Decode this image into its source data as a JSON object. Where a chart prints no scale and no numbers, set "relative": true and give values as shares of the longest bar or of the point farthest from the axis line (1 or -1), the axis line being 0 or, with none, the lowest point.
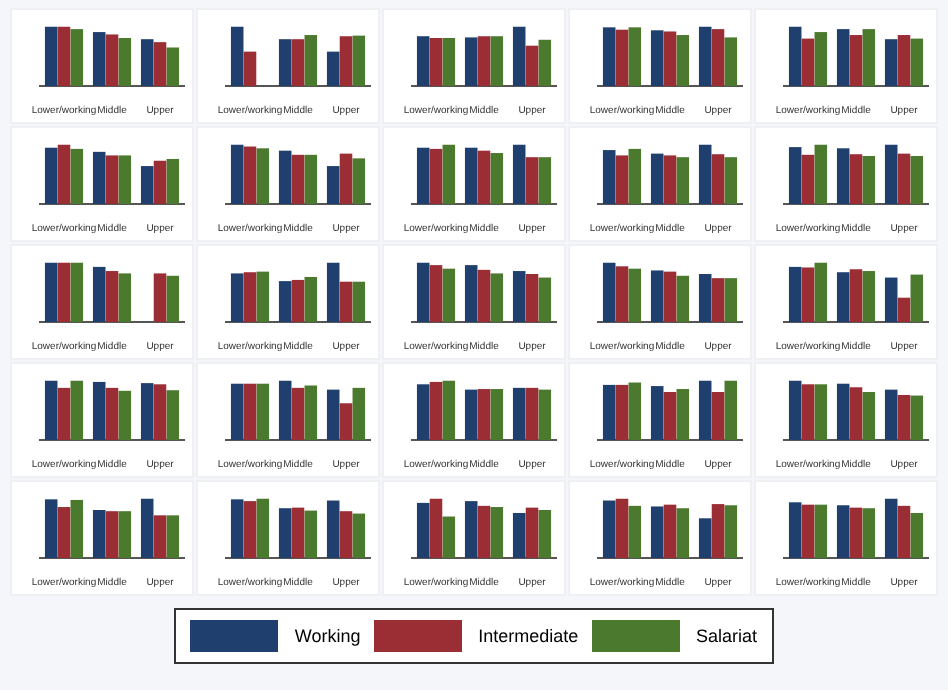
{
  "chart_data": [
    {
      "type": "bar",
      "relative": true,
      "legend": "bottom",
      "categories": [
        "Lower/working",
        "Middle",
        "Upper"
      ],
      "series": [
        {
          "name": "Working",
          "color": "#1f3f6e",
          "values": [
            1,
            0.91,
            0.79
          ]
        },
        {
          "name": "Intermediate",
          "color": "#9b2d35",
          "values": [
            1,
            0.87,
            0.74
          ]
        },
        {
          "name": "Salariat",
          "color": "#4b7a2e",
          "values": [
            0.96,
            0.81,
            0.65
          ]
        }
      ]
    },
    {
      "type": "bar",
      "relative": true,
      "categories": [
        "Lower/working",
        "Middle",
        "Upper"
      ],
      "series": [
        {
          "color": "#1f3f6e",
          "values": [
            1,
            0.79,
            0.58
          ]
        },
        {
          "color": "#9b2d35",
          "values": [
            0.58,
            0.79,
            0.84
          ]
        },
        {
          "color": "#4b7a2e",
          "values": [
            null,
            0.86,
            0.85
          ]
        }
      ]
    },
    {
      "type": "bar",
      "relative": true,
      "categories": [
        "Lower/working",
        "Middle",
        "Upper"
      ],
      "series": [
        {
          "color": "#1f3f6e",
          "values": [
            0.84,
            0.82,
            1
          ]
        },
        {
          "color": "#9b2d35",
          "values": [
            0.81,
            0.84,
            0.68
          ]
        },
        {
          "color": "#4b7a2e",
          "values": [
            0.81,
            0.84,
            0.78
          ]
        }
      ]
    },
    {
      "type": "bar",
      "relative": true,
      "categories": [
        "Lower/working",
        "Middle",
        "Upper"
      ],
      "series": [
        {
          "color": "#1f3f6e",
          "values": [
            0.99,
            0.94,
            1
          ]
        },
        {
          "color": "#9b2d35",
          "values": [
            0.95,
            0.92,
            0.96
          ]
        },
        {
          "color": "#4b7a2e",
          "values": [
            0.99,
            0.86,
            0.82
          ]
        }
      ]
    },
    {
      "type": "bar",
      "relative": true,
      "categories": [
        "Lower/working",
        "Middle",
        "Upper"
      ],
      "series": [
        {
          "color": "#1f3f6e",
          "values": [
            1,
            0.96,
            0.79
          ]
        },
        {
          "color": "#9b2d35",
          "values": [
            0.8,
            0.86,
            0.86
          ]
        },
        {
          "color": "#4b7a2e",
          "values": [
            0.91,
            0.96,
            0.8
          ]
        }
      ]
    },
    {
      "type": "bar",
      "relative": true,
      "categories": [
        "Lower/working",
        "Middle",
        "Upper"
      ],
      "series": [
        {
          "color": "#1f3f6e",
          "values": [
            0.95,
            0.88,
            0.64
          ]
        },
        {
          "color": "#9b2d35",
          "values": [
            1,
            0.82,
            0.73
          ]
        },
        {
          "color": "#4b7a2e",
          "values": [
            0.93,
            0.82,
            0.76
          ]
        }
      ]
    },
    {
      "type": "bar",
      "relative": true,
      "categories": [
        "Lower/working",
        "Middle",
        "Upper"
      ],
      "series": [
        {
          "color": "#1f3f6e",
          "values": [
            1,
            0.9,
            0.64
          ]
        },
        {
          "color": "#9b2d35",
          "values": [
            0.97,
            0.83,
            0.85
          ]
        },
        {
          "color": "#4b7a2e",
          "values": [
            0.94,
            0.83,
            0.77
          ]
        }
      ]
    },
    {
      "type": "bar",
      "relative": true,
      "categories": [
        "Lower/working",
        "Middle",
        "Upper"
      ],
      "series": [
        {
          "color": "#1f3f6e",
          "values": [
            0.95,
            0.95,
            1
          ]
        },
        {
          "color": "#9b2d35",
          "values": [
            0.93,
            0.9,
            0.79
          ]
        },
        {
          "color": "#4b7a2e",
          "values": [
            1,
            0.86,
            0.79
          ]
        }
      ]
    },
    {
      "type": "bar",
      "relative": true,
      "categories": [
        "Lower/working",
        "Middle",
        "Upper"
      ],
      "series": [
        {
          "color": "#1f3f6e",
          "values": [
            0.91,
            0.85,
            1
          ]
        },
        {
          "color": "#9b2d35",
          "values": [
            0.82,
            0.82,
            0.84
          ]
        },
        {
          "color": "#4b7a2e",
          "values": [
            0.93,
            0.79,
            0.79
          ]
        }
      ]
    },
    {
      "type": "bar",
      "relative": true,
      "categories": [
        "Lower/working",
        "Middle",
        "Upper"
      ],
      "series": [
        {
          "color": "#1f3f6e",
          "values": [
            0.96,
            0.94,
            1
          ]
        },
        {
          "color": "#9b2d35",
          "values": [
            0.83,
            0.84,
            0.85
          ]
        },
        {
          "color": "#4b7a2e",
          "values": [
            1,
            0.81,
            0.81
          ]
        }
      ]
    },
    {
      "type": "bar",
      "relative": true,
      "categories": [
        "Lower/working",
        "Middle",
        "Upper"
      ],
      "series": [
        {
          "color": "#1f3f6e",
          "values": [
            1,
            0.93,
            null
          ]
        },
        {
          "color": "#9b2d35",
          "values": [
            1,
            0.86,
            0.82
          ]
        },
        {
          "color": "#4b7a2e",
          "values": [
            1,
            0.82,
            0.78
          ]
        }
      ]
    },
    {
      "type": "bar",
      "relative": true,
      "categories": [
        "Lower/working",
        "Middle",
        "Upper"
      ],
      "series": [
        {
          "color": "#1f3f6e",
          "values": [
            0.82,
            0.69,
            1
          ]
        },
        {
          "color": "#9b2d35",
          "values": [
            0.84,
            0.71,
            0.68
          ]
        },
        {
          "color": "#4b7a2e",
          "values": [
            0.85,
            0.76,
            0.68
          ]
        }
      ]
    },
    {
      "type": "bar",
      "relative": true,
      "categories": [
        "Lower/working",
        "Middle",
        "Upper"
      ],
      "series": [
        {
          "color": "#1f3f6e",
          "values": [
            1,
            0.96,
            0.86
          ]
        },
        {
          "color": "#9b2d35",
          "values": [
            0.96,
            0.88,
            0.81
          ]
        },
        {
          "color": "#4b7a2e",
          "values": [
            0.9,
            0.82,
            0.75
          ]
        }
      ]
    },
    {
      "type": "bar",
      "relative": true,
      "categories": [
        "Lower/working",
        "Middle",
        "Upper"
      ],
      "series": [
        {
          "color": "#1f3f6e",
          "values": [
            1,
            0.87,
            0.81
          ]
        },
        {
          "color": "#9b2d35",
          "values": [
            0.94,
            0.85,
            0.74
          ]
        },
        {
          "color": "#4b7a2e",
          "values": [
            0.9,
            0.78,
            0.74
          ]
        }
      ]
    },
    {
      "type": "bar",
      "relative": true,
      "categories": [
        "Lower/working",
        "Middle",
        "Upper"
      ],
      "series": [
        {
          "color": "#1f3f6e",
          "values": [
            0.93,
            0.84,
            0.75
          ]
        },
        {
          "color": "#9b2d35",
          "values": [
            0.92,
            0.89,
            0.41
          ]
        },
        {
          "color": "#4b7a2e",
          "values": [
            1,
            0.86,
            0.8
          ]
        }
      ]
    },
    {
      "type": "bar",
      "relative": true,
      "categories": [
        "Lower/working",
        "Middle",
        "Upper"
      ],
      "series": [
        {
          "color": "#1f3f6e",
          "values": [
            1,
            0.98,
            0.96
          ]
        },
        {
          "color": "#9b2d35",
          "values": [
            0.88,
            0.88,
            0.94
          ]
        },
        {
          "color": "#4b7a2e",
          "values": [
            1,
            0.83,
            0.84
          ]
        }
      ]
    },
    {
      "type": "bar",
      "relative": true,
      "categories": [
        "Lower/working",
        "Middle",
        "Upper"
      ],
      "series": [
        {
          "color": "#1f3f6e",
          "values": [
            0.95,
            1,
            0.85
          ]
        },
        {
          "color": "#9b2d35",
          "values": [
            0.95,
            0.88,
            0.62
          ]
        },
        {
          "color": "#4b7a2e",
          "values": [
            0.95,
            0.92,
            0.88
          ]
        }
      ]
    },
    {
      "type": "bar",
      "relative": true,
      "categories": [
        "Lower/working",
        "Middle",
        "Upper"
      ],
      "series": [
        {
          "color": "#1f3f6e",
          "values": [
            0.94,
            0.85,
            0.88
          ]
        },
        {
          "color": "#9b2d35",
          "values": [
            0.98,
            0.86,
            0.88
          ]
        },
        {
          "color": "#4b7a2e",
          "values": [
            1,
            0.86,
            0.85
          ]
        }
      ]
    },
    {
      "type": "bar",
      "relative": true,
      "categories": [
        "Lower/working",
        "Middle",
        "Upper"
      ],
      "series": [
        {
          "color": "#1f3f6e",
          "values": [
            0.93,
            0.91,
            1
          ]
        },
        {
          "color": "#9b2d35",
          "values": [
            0.93,
            0.81,
            0.81
          ]
        },
        {
          "color": "#4b7a2e",
          "values": [
            0.97,
            0.86,
            1
          ]
        }
      ]
    },
    {
      "type": "bar",
      "relative": true,
      "categories": [
        "Lower/working",
        "Middle",
        "Upper"
      ],
      "series": [
        {
          "color": "#1f3f6e",
          "values": [
            1,
            0.95,
            0.85
          ]
        },
        {
          "color": "#9b2d35",
          "values": [
            0.94,
            0.89,
            0.76
          ]
        },
        {
          "color": "#4b7a2e",
          "values": [
            0.94,
            0.81,
            0.75
          ]
        }
      ]
    },
    {
      "type": "bar",
      "relative": true,
      "categories": [
        "Lower/working",
        "Middle",
        "Upper"
      ],
      "series": [
        {
          "color": "#1f3f6e",
          "values": [
            0.99,
            0.81,
            1
          ]
        },
        {
          "color": "#9b2d35",
          "values": [
            0.86,
            0.79,
            0.72
          ]
        },
        {
          "color": "#4b7a2e",
          "values": [
            0.98,
            0.79,
            0.72
          ]
        }
      ]
    },
    {
      "type": "bar",
      "relative": true,
      "categories": [
        "Lower/working",
        "Middle",
        "Upper"
      ],
      "series": [
        {
          "color": "#1f3f6e",
          "values": [
            0.99,
            0.84,
            0.97
          ]
        },
        {
          "color": "#9b2d35",
          "values": [
            0.96,
            0.85,
            0.79
          ]
        },
        {
          "color": "#4b7a2e",
          "values": [
            1,
            0.8,
            0.75
          ]
        }
      ]
    },
    {
      "type": "bar",
      "relative": true,
      "categories": [
        "Lower/working",
        "Middle",
        "Upper"
      ],
      "series": [
        {
          "color": "#1f3f6e",
          "values": [
            0.93,
            0.96,
            0.76
          ]
        },
        {
          "color": "#9b2d35",
          "values": [
            1,
            0.88,
            0.85
          ]
        },
        {
          "color": "#4b7a2e",
          "values": [
            0.7,
            0.86,
            0.81
          ]
        }
      ]
    },
    {
      "type": "bar",
      "relative": true,
      "categories": [
        "Lower/working",
        "Middle",
        "Upper"
      ],
      "series": [
        {
          "color": "#1f3f6e",
          "values": [
            0.97,
            0.87,
            0.67
          ]
        },
        {
          "color": "#9b2d35",
          "values": [
            1,
            0.9,
            0.91
          ]
        },
        {
          "color": "#4b7a2e",
          "values": [
            0.88,
            0.84,
            0.89
          ]
        }
      ]
    },
    {
      "type": "bar",
      "relative": true,
      "categories": [
        "Lower/working",
        "Middle",
        "Upper"
      ],
      "series": [
        {
          "color": "#1f3f6e",
          "values": [
            0.94,
            0.89,
            1
          ]
        },
        {
          "color": "#9b2d35",
          "values": [
            0.9,
            0.85,
            0.88
          ]
        },
        {
          "color": "#4b7a2e",
          "values": [
            0.9,
            0.84,
            0.76
          ]
        }
      ]
    }
  ]
}
